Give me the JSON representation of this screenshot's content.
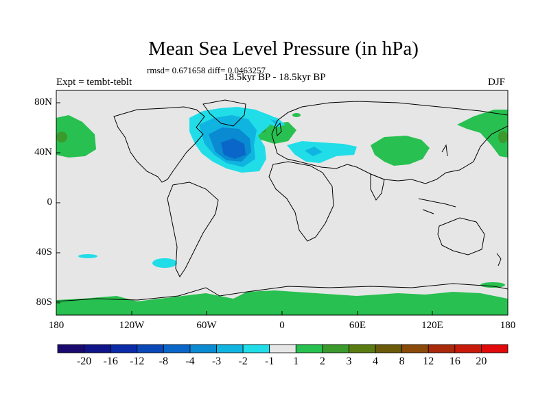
{
  "figure": {
    "title": "Mean Sea Level Pressure (in hPa)",
    "stats": "rmsd= 0.671658  diff= 0.0463257",
    "left_label": "Expt = tembt-teblt",
    "center_label": "18.5kyr BP - 18.5kyr BP",
    "right_label": "DJF"
  },
  "axes": {
    "lat_labels": [
      "80N",
      "40N",
      "0",
      "40S",
      "80S"
    ],
    "lon_labels": [
      "180",
      "120W",
      "60W",
      "0",
      "60E",
      "120E",
      "180"
    ]
  },
  "colorbar": {
    "labels": [
      "-20",
      "-16",
      "-12",
      "-8",
      "-4",
      "-3",
      "-2",
      "-1",
      "1",
      "2",
      "3",
      "4",
      "8",
      "12",
      "16",
      "20"
    ],
    "colors": [
      "#1a0a6e",
      "#101489",
      "#0a2aa8",
      "#0a48b8",
      "#0a66c8",
      "#0a8ad0",
      "#10b4e0",
      "#20dde8",
      "#e6e6e6",
      "#28c050",
      "#3a9a2c",
      "#5a7a12",
      "#6a5a0a",
      "#8a4a0a",
      "#a82a0a",
      "#c81a0a",
      "#e00a0a"
    ]
  },
  "colors": {
    "ocean": "#e6e6e6",
    "coast": "#000000"
  }
}
